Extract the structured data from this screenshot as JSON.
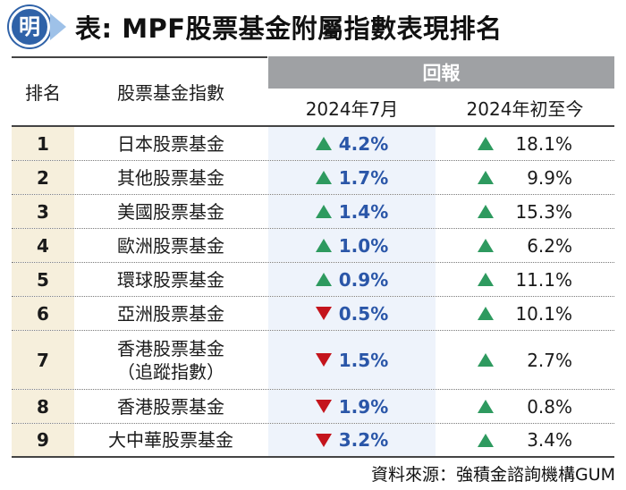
{
  "header": {
    "logo_char": "明",
    "title": "表: MPF股票基金附屬指數表現排名"
  },
  "table": {
    "col_rank": "排名",
    "col_index": "股票基金指數",
    "col_group": "回報",
    "col_month": "2024年7月",
    "col_ytd": "2024年初至今",
    "rows": [
      {
        "rank": "1",
        "name": "日本股票基金",
        "name2": "",
        "month": "4.2%",
        "month_dir": "up",
        "ytd": "18.1%"
      },
      {
        "rank": "2",
        "name": "其他股票基金",
        "name2": "",
        "month": "1.7%",
        "month_dir": "up",
        "ytd": "9.9%"
      },
      {
        "rank": "3",
        "name": "美國股票基金",
        "name2": "",
        "month": "1.4%",
        "month_dir": "up",
        "ytd": "15.3%"
      },
      {
        "rank": "4",
        "name": "歐洲股票基金",
        "name2": "",
        "month": "1.0%",
        "month_dir": "up",
        "ytd": "6.2%"
      },
      {
        "rank": "5",
        "name": "環球股票基金",
        "name2": "",
        "month": "0.9%",
        "month_dir": "up",
        "ytd": "11.1%"
      },
      {
        "rank": "6",
        "name": "亞洲股票基金",
        "name2": "",
        "month": "0.5%",
        "month_dir": "down",
        "ytd": "10.1%"
      },
      {
        "rank": "7",
        "name": "香港股票基金",
        "name2": "（追蹤指數）",
        "month": "1.5%",
        "month_dir": "down",
        "ytd": "2.7%"
      },
      {
        "rank": "8",
        "name": "香港股票基金",
        "name2": "",
        "month": "1.9%",
        "month_dir": "down",
        "ytd": "0.8%"
      },
      {
        "rank": "9",
        "name": "大中華股票基金",
        "name2": "",
        "month": "3.2%",
        "month_dir": "down",
        "ytd": "3.4%"
      }
    ]
  },
  "source": "資料來源：強積金諮詢機構GUM",
  "colors": {
    "up": "#2e9a5f",
    "down": "#c4141c",
    "month_text": "#2a56a8",
    "group_header": "#9fa1a4"
  }
}
